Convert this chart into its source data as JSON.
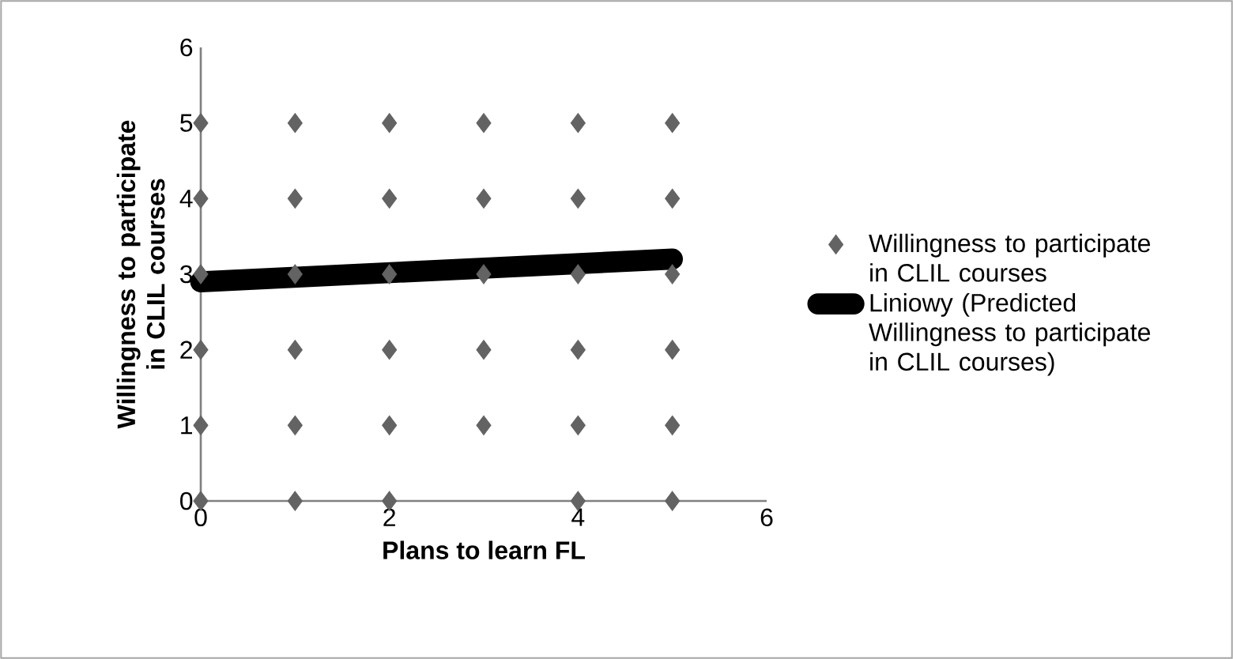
{
  "chart_data": {
    "type": "scatter",
    "xlabel": "Plans to learn FL",
    "ylabel": "Willingness to participate in CLIL courses",
    "xlim": [
      0,
      6
    ],
    "ylim": [
      0,
      6
    ],
    "xticks": [
      0,
      2,
      4,
      6
    ],
    "yticks": [
      0,
      1,
      2,
      3,
      4,
      5,
      6
    ],
    "marker": "diamond",
    "legend": "right",
    "series": [
      {
        "name": "Willingness to participate in CLIL courses",
        "color": "#636363",
        "x": [
          0,
          1,
          2,
          4,
          5,
          0,
          1,
          2,
          3,
          4,
          5,
          0,
          1,
          2,
          3,
          4,
          5,
          0,
          1,
          2,
          3,
          4,
          5,
          0,
          1,
          2,
          3,
          4,
          5,
          0,
          1,
          2,
          3,
          4,
          5
        ],
        "values": [
          0,
          0,
          0,
          0,
          0,
          1,
          1,
          1,
          1,
          1,
          1,
          2,
          2,
          2,
          2,
          2,
          2,
          3,
          3,
          3,
          3,
          3,
          3,
          4,
          4,
          4,
          4,
          4,
          4,
          5,
          5,
          5,
          5,
          5,
          5
        ]
      },
      {
        "name": "Liniowy (Predicted Willingness to participate in CLIL courses)",
        "type": "line",
        "marker": "none",
        "color": "#000000",
        "x": [
          0,
          5
        ],
        "values": [
          2.9,
          3.2
        ]
      }
    ]
  }
}
